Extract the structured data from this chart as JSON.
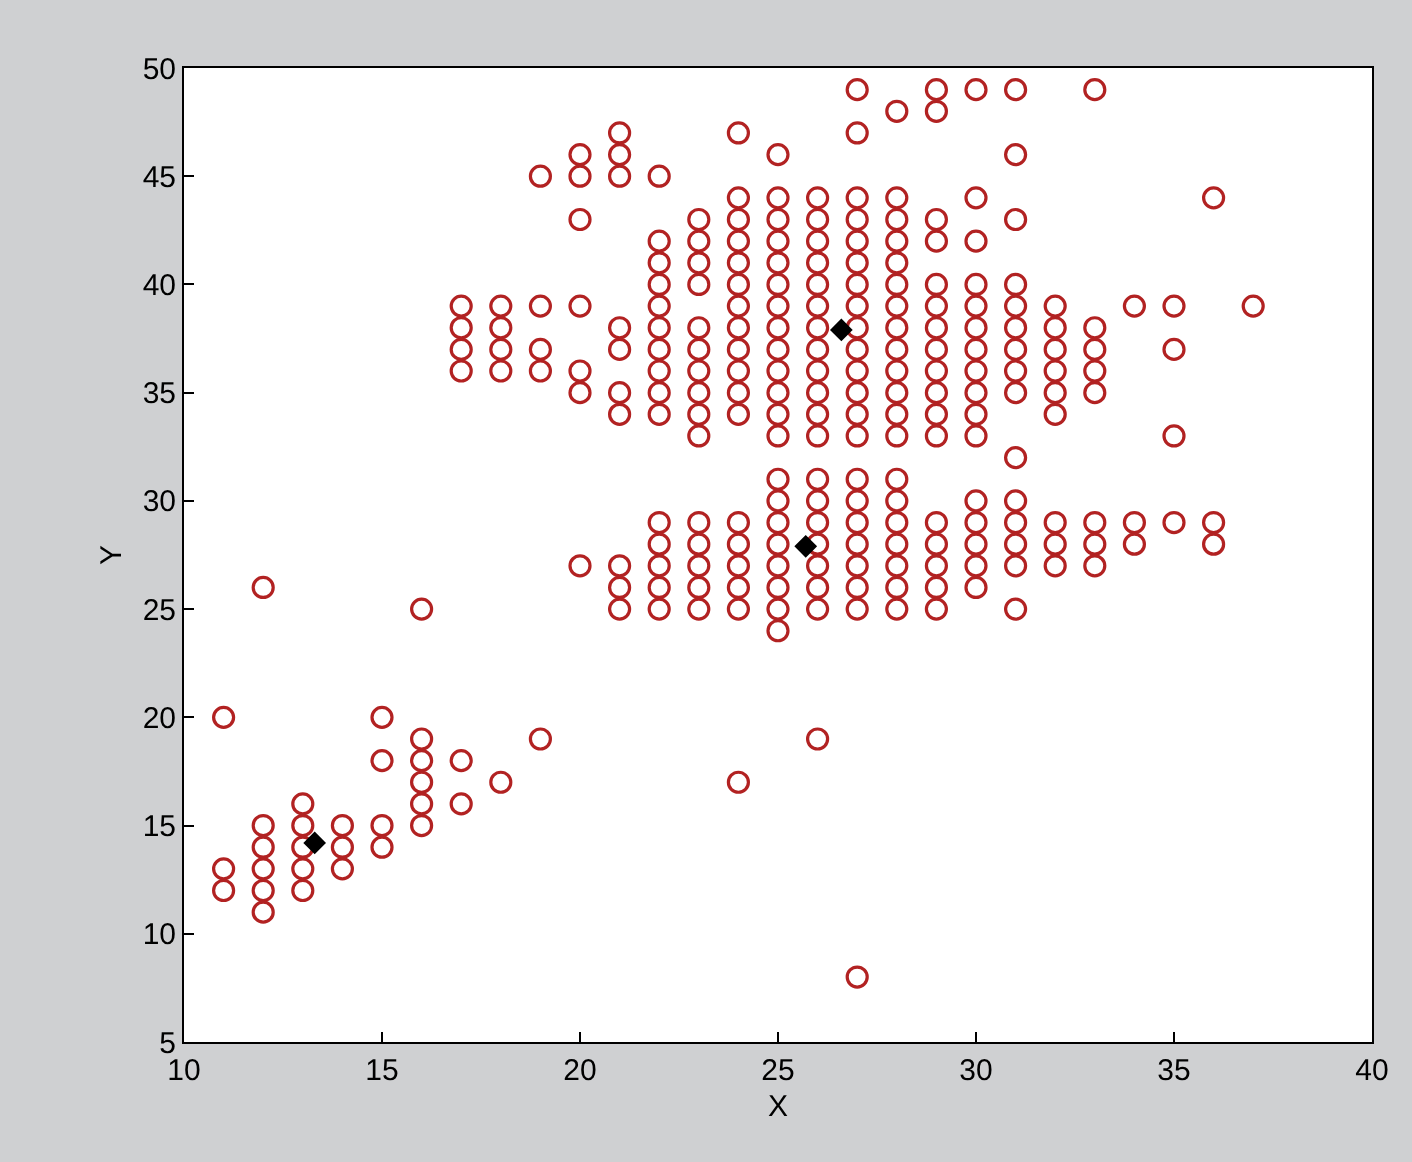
{
  "chart_data": {
    "type": "scatter",
    "xlabel": "X",
    "ylabel": "Y",
    "xlim": [
      10,
      40
    ],
    "ylim": [
      5,
      50
    ],
    "xticks": [
      10,
      15,
      20,
      25,
      30,
      35,
      40
    ],
    "yticks": [
      5,
      10,
      15,
      20,
      25,
      30,
      35,
      40,
      45,
      50
    ],
    "series": [
      {
        "color": "#b22222",
        "marker": "circle",
        "x": [
          11,
          11,
          11,
          12,
          12,
          12,
          12,
          12,
          12,
          13,
          13,
          13,
          13,
          13,
          14,
          14,
          14,
          15,
          15,
          15,
          15,
          16,
          16,
          16,
          16,
          16,
          16,
          17,
          17,
          17,
          17,
          17,
          17,
          18,
          18,
          18,
          18,
          18,
          19,
          19,
          19,
          19,
          19,
          20,
          20,
          20,
          20,
          20,
          20,
          20,
          21,
          21,
          21,
          21,
          21,
          21,
          21,
          21,
          21,
          21,
          22,
          22,
          22,
          22,
          22,
          22,
          22,
          22,
          22,
          22,
          22,
          22,
          22,
          22,
          22,
          23,
          23,
          23,
          23,
          23,
          23,
          23,
          23,
          23,
          23,
          23,
          23,
          23,
          23,
          23,
          24,
          24,
          24,
          24,
          24,
          24,
          24,
          24,
          24,
          24,
          24,
          24,
          24,
          24,
          24,
          24,
          24,
          24,
          25,
          25,
          25,
          25,
          25,
          25,
          25,
          25,
          25,
          25,
          25,
          25,
          25,
          25,
          25,
          25,
          25,
          25,
          25,
          25,
          25,
          26,
          26,
          26,
          26,
          26,
          26,
          26,
          26,
          26,
          26,
          26,
          26,
          26,
          26,
          26,
          26,
          26,
          26,
          26,
          26,
          27,
          27,
          27,
          27,
          27,
          27,
          27,
          27,
          27,
          27,
          27,
          27,
          27,
          27,
          27,
          27,
          27,
          27,
          27,
          27,
          27,
          27,
          28,
          28,
          28,
          28,
          28,
          28,
          28,
          28,
          28,
          28,
          28,
          28,
          28,
          28,
          28,
          28,
          28,
          28,
          28,
          28,
          29,
          29,
          29,
          29,
          29,
          29,
          29,
          29,
          29,
          29,
          29,
          29,
          29,
          29,
          29,
          29,
          29,
          30,
          30,
          30,
          30,
          30,
          30,
          30,
          30,
          30,
          30,
          30,
          30,
          30,
          30,
          30,
          30,
          31,
          31,
          31,
          31,
          31,
          31,
          31,
          31,
          31,
          31,
          31,
          31,
          31,
          31,
          31,
          32,
          32,
          32,
          32,
          32,
          32,
          32,
          32,
          32,
          33,
          33,
          33,
          33,
          33,
          33,
          33,
          33,
          34,
          34,
          34,
          35,
          35,
          35,
          35,
          36,
          36,
          36,
          37
        ],
        "values": [
          20,
          13,
          12,
          26,
          15,
          14,
          13,
          12,
          11,
          16,
          15,
          14,
          13,
          12,
          15,
          14,
          13,
          20,
          18,
          15,
          14,
          25,
          19,
          18,
          17,
          16,
          15,
          39,
          38,
          37,
          36,
          18,
          16,
          39,
          38,
          37,
          36,
          17,
          45,
          39,
          37,
          36,
          19,
          46,
          45,
          43,
          39,
          36,
          35,
          27,
          47,
          46,
          45,
          38,
          37,
          35,
          34,
          27,
          26,
          25,
          45,
          42,
          41,
          40,
          39,
          38,
          37,
          36,
          35,
          34,
          29,
          28,
          27,
          26,
          25,
          43,
          42,
          41,
          40,
          38,
          37,
          36,
          35,
          34,
          33,
          29,
          28,
          27,
          26,
          25,
          47,
          44,
          43,
          42,
          41,
          40,
          39,
          38,
          37,
          36,
          35,
          34,
          29,
          28,
          27,
          26,
          25,
          17,
          46,
          44,
          43,
          42,
          41,
          40,
          39,
          38,
          37,
          36,
          35,
          34,
          33,
          31,
          30,
          29,
          28,
          27,
          26,
          25,
          24,
          44,
          43,
          42,
          41,
          40,
          39,
          38,
          37,
          36,
          35,
          34,
          33,
          31,
          30,
          29,
          28,
          27,
          26,
          25,
          19,
          49,
          47,
          44,
          43,
          42,
          41,
          40,
          39,
          38,
          37,
          36,
          35,
          34,
          33,
          31,
          30,
          29,
          28,
          27,
          26,
          25,
          8,
          48,
          44,
          43,
          42,
          41,
          40,
          39,
          38,
          37,
          36,
          35,
          34,
          33,
          31,
          30,
          29,
          28,
          27,
          26,
          25,
          49,
          48,
          43,
          42,
          40,
          39,
          38,
          37,
          36,
          35,
          34,
          33,
          29,
          28,
          27,
          26,
          25,
          49,
          44,
          42,
          40,
          39,
          38,
          37,
          36,
          35,
          34,
          33,
          30,
          29,
          28,
          27,
          26,
          49,
          46,
          43,
          40,
          39,
          38,
          37,
          36,
          35,
          32,
          30,
          29,
          28,
          27,
          25,
          39,
          38,
          37,
          36,
          35,
          34,
          29,
          28,
          27,
          49,
          38,
          37,
          36,
          35,
          29,
          28,
          27,
          39,
          29,
          28,
          39,
          37,
          33,
          29,
          44,
          29,
          28,
          39
        ]
      },
      {
        "color": "#000000",
        "marker": "diamond",
        "x": [
          13.3,
          25.7,
          26.6
        ],
        "values": [
          14.2,
          27.9,
          37.9
        ]
      }
    ]
  }
}
